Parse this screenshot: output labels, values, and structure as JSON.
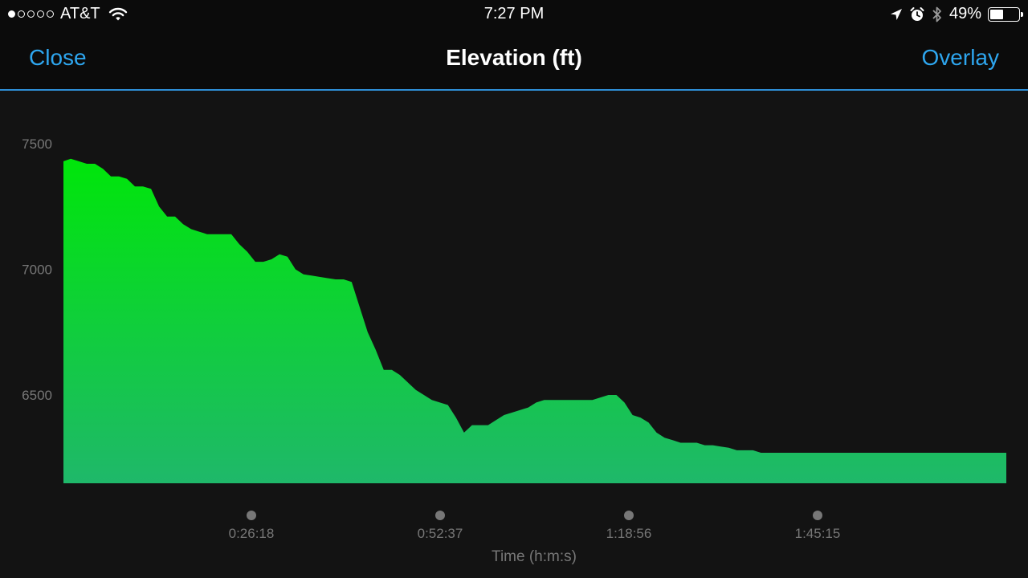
{
  "statusbar": {
    "carrier": "AT&T",
    "signal_bars_filled": 1,
    "signal_bars_total": 5,
    "time": "7:27 PM",
    "battery": "49%",
    "battery_level": 0.49,
    "icons": [
      "wifi-icon",
      "location-arrow-icon",
      "alarm-icon",
      "bluetooth-icon",
      "battery-icon"
    ]
  },
  "navbar": {
    "close_label": "Close",
    "title": "Elevation (ft)",
    "overlay_label": "Overlay"
  },
  "colors": {
    "accent": "#2ea6ef",
    "fill_top": "#00e60a",
    "fill_bottom": "#1fb86a",
    "background": "#131313"
  },
  "chart_data": {
    "type": "area",
    "title": "Elevation (ft)",
    "xlabel": "Time (h:m:s)",
    "ylabel": "",
    "yticks": [
      7500,
      7000,
      6500
    ],
    "xticks": [
      "0:26:18",
      "0:52:37",
      "1:18:56",
      "1:45:15"
    ],
    "xtick_seconds": [
      1578,
      3157,
      4736,
      6315
    ],
    "xlim_seconds": [
      0,
      7888
    ],
    "ylim": [
      6150,
      7600
    ],
    "grid": false,
    "legend": "none",
    "series": [
      {
        "x_seconds": [
          0,
          67,
          134,
          201,
          269,
          336,
          403,
          470,
          537,
          604,
          671,
          739,
          806,
          873,
          940,
          1007,
          1074,
          1141,
          1208,
          1276,
          1343,
          1410,
          1477,
          1544,
          1611,
          1678,
          1746,
          1813,
          1880,
          1947,
          2014,
          2081,
          2148,
          2216,
          2283,
          2350,
          2417,
          2484,
          2551,
          2618,
          2685,
          2753,
          2820,
          2887,
          2954,
          3021,
          3088,
          3155,
          3222,
          3290,
          3357,
          3424,
          3491,
          3558,
          3625,
          3692,
          3760,
          3827,
          3894,
          3961,
          4028,
          4095,
          4162,
          4229,
          4297,
          4364,
          4431,
          4498,
          4565,
          4632,
          4699,
          4767,
          4834,
          4901,
          4968,
          5035,
          5102,
          5169,
          5236,
          5304,
          5371,
          5438,
          5505,
          5572,
          5639,
          5706,
          5774,
          5841,
          5908,
          5975,
          6042,
          6109,
          6176,
          6243,
          6311,
          6378,
          6445,
          6512,
          6579,
          6646,
          6713,
          6781,
          6848,
          6915,
          6982,
          7049,
          7116,
          7183,
          7251,
          7318,
          7385,
          7452,
          7519,
          7586,
          7653,
          7720,
          7788,
          7855
        ],
        "values": [
          7430,
          7440,
          7430,
          7420,
          7420,
          7400,
          7370,
          7370,
          7360,
          7330,
          7330,
          7320,
          7250,
          7210,
          7210,
          7180,
          7160,
          7150,
          7140,
          7140,
          7140,
          7140,
          7100,
          7070,
          7030,
          7030,
          7040,
          7060,
          7050,
          7000,
          6980,
          6975,
          6970,
          6965,
          6960,
          6960,
          6950,
          6850,
          6750,
          6680,
          6600,
          6600,
          6580,
          6550,
          6520,
          6500,
          6480,
          6470,
          6460,
          6410,
          6350,
          6380,
          6380,
          6380,
          6400,
          6420,
          6430,
          6440,
          6450,
          6470,
          6480,
          6480,
          6480,
          6480,
          6480,
          6480,
          6480,
          6490,
          6500,
          6500,
          6470,
          6420,
          6410,
          6390,
          6350,
          6330,
          6320,
          6310,
          6310,
          6310,
          6300,
          6300,
          6295,
          6290,
          6280,
          6280,
          6280,
          6270,
          6270,
          6270,
          6270,
          6270,
          6270,
          6270,
          6270,
          6270,
          6270,
          6270,
          6270,
          6270,
          6270,
          6270,
          6270,
          6270,
          6270,
          6270,
          6270,
          6270,
          6270,
          6270,
          6270,
          6270,
          6270,
          6270,
          6270,
          6270,
          6270,
          6270
        ]
      }
    ]
  }
}
